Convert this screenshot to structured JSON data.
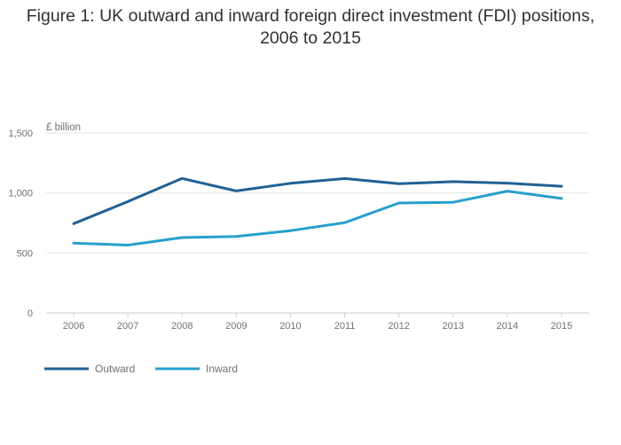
{
  "title_lines": [
    "Figure 1: UK outward and inward foreign direct investment (FDI) positions,",
    "2006 to 2015"
  ],
  "chart_data": {
    "type": "line",
    "title": "Figure 1: UK outward and inward foreign direct investment (FDI) positions, 2006 to 2015",
    "ylabel": "£ billion",
    "xlabel": "",
    "x": [
      "2006",
      "2007",
      "2008",
      "2009",
      "2010",
      "2011",
      "2012",
      "2013",
      "2014",
      "2015"
    ],
    "ylim": [
      0,
      1500
    ],
    "yticks": [
      0,
      500,
      1000,
      1500
    ],
    "ytick_labels": [
      "0",
      "500",
      "1,000",
      "1,500"
    ],
    "grid": true,
    "legend": "bottom-left",
    "series": [
      {
        "name": "Outward",
        "color": "#206095",
        "values": [
          744,
          928,
          1121,
          1017,
          1080,
          1120,
          1077,
          1094,
          1082,
          1056
        ]
      },
      {
        "name": "Inward",
        "color": "#27a0cc",
        "values": [
          582,
          565,
          628,
          637,
          686,
          752,
          916,
          922,
          1015,
          954
        ]
      }
    ]
  }
}
